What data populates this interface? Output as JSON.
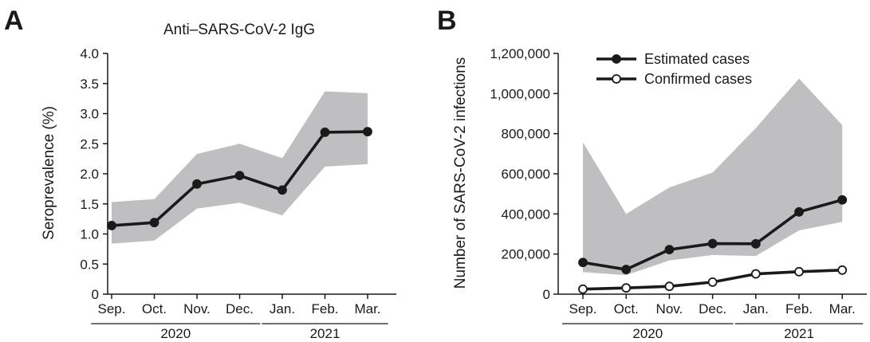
{
  "chart_data": [
    {
      "panel": "A",
      "type": "line",
      "title": "Anti–SARS-CoV-2 IgG",
      "ylabel": "Seroprevalence (%)",
      "categories": [
        "Sep.",
        "Oct.",
        "Nov.",
        "Dec.",
        "Jan.",
        "Feb.",
        "Mar."
      ],
      "year_groups": [
        {
          "label": "2020",
          "categories": [
            "Sep.",
            "Oct.",
            "Nov.",
            "Dec."
          ]
        },
        {
          "label": "2021",
          "categories": [
            "Jan.",
            "Feb.",
            "Mar."
          ]
        }
      ],
      "ylim": [
        0,
        4.0
      ],
      "yticks": [
        0,
        0.5,
        1.0,
        1.5,
        2.0,
        2.5,
        3.0,
        3.5,
        4.0
      ],
      "ytick_labels": [
        "0",
        "0.5",
        "1.0",
        "1.5",
        "2.0",
        "2.5",
        "3.0",
        "3.5",
        "4.0"
      ],
      "series": [
        {
          "values": [
            1.14,
            1.19,
            1.83,
            1.97,
            1.73,
            2.69,
            2.7
          ],
          "lower": [
            0.84,
            0.89,
            1.42,
            1.52,
            1.31,
            2.12,
            2.16
          ],
          "upper": [
            1.53,
            1.58,
            2.33,
            2.5,
            2.26,
            3.37,
            3.34
          ],
          "marker": "filled",
          "color": "#1a1a1a",
          "band_color": "#bfbfc1"
        }
      ],
      "legend": null,
      "grid": false
    },
    {
      "panel": "B",
      "type": "line",
      "title": "",
      "ylabel": "Number of SARS-CoV-2 infections",
      "categories": [
        "Sep.",
        "Oct.",
        "Nov.",
        "Dec.",
        "Jan.",
        "Feb.",
        "Mar."
      ],
      "year_groups": [
        {
          "label": "2020",
          "categories": [
            "Sep.",
            "Oct.",
            "Nov.",
            "Dec."
          ]
        },
        {
          "label": "2021",
          "categories": [
            "Jan.",
            "Feb.",
            "Mar."
          ]
        }
      ],
      "ylim": [
        0,
        1200000
      ],
      "yticks": [
        0,
        200000,
        400000,
        600000,
        800000,
        1000000,
        1200000
      ],
      "ytick_labels": [
        "0",
        "200,000",
        "400,000",
        "600,000",
        "800,000",
        "1,000,000",
        "1,200,000"
      ],
      "series": [
        {
          "name": "Estimated cases",
          "values": [
            158000,
            123000,
            222000,
            252000,
            251000,
            410000,
            470000
          ],
          "lower": [
            110000,
            95000,
            168000,
            195000,
            190000,
            318000,
            360000
          ],
          "upper": [
            757000,
            400000,
            532000,
            606000,
            828000,
            1075000,
            843000
          ],
          "marker": "filled",
          "color": "#1a1a1a",
          "band_color": "#bfbfc1"
        },
        {
          "name": "Confirmed cases",
          "values": [
            25000,
            31000,
            39000,
            60000,
            101000,
            112000,
            120000
          ],
          "marker": "open",
          "color": "#1a1a1a"
        }
      ],
      "legend": "top-left",
      "grid": false
    }
  ]
}
